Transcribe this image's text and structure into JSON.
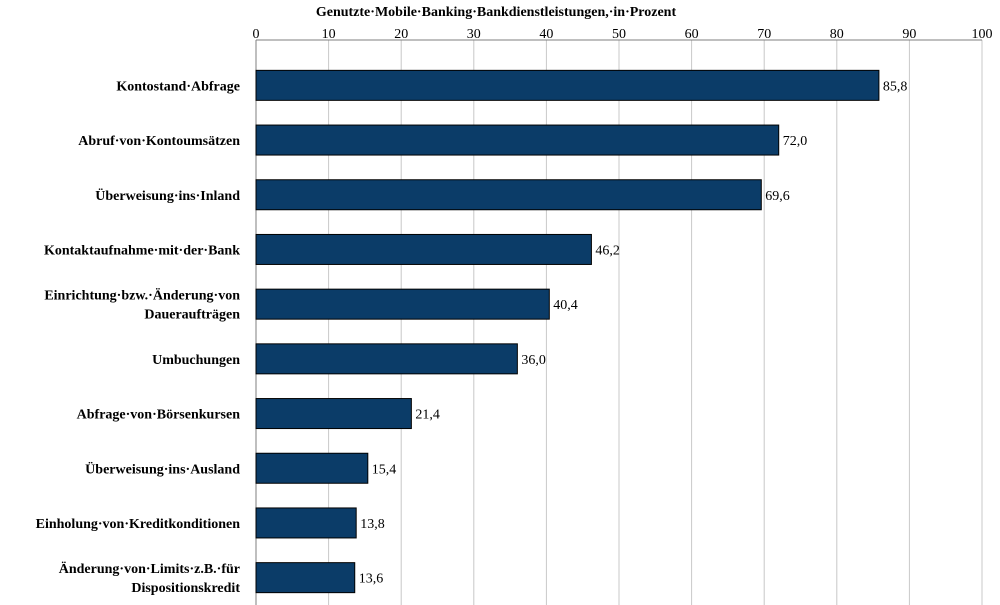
{
  "chart_data": {
    "type": "bar",
    "orientation": "horizontal",
    "title": "Genutzte·Mobile·Banking·Bankdienstleistungen,·in·Prozent",
    "title_position": "top",
    "x_axis_position": "top",
    "xlim": [
      0,
      100
    ],
    "ticks": [
      0,
      10,
      20,
      30,
      40,
      50,
      60,
      70,
      80,
      90,
      100
    ],
    "tick_labels": [
      "0",
      "10",
      "20",
      "30",
      "40",
      "50",
      "60",
      "70",
      "80",
      "90",
      "100"
    ],
    "grid": true,
    "categories": [
      [
        "Kontostand·Abfrage"
      ],
      [
        "Abruf·von·Kontoumsätzen"
      ],
      [
        "Überweisung·ins·Inland"
      ],
      [
        "Kontaktaufnahme·mit·der·Bank"
      ],
      [
        "Einrichtung·bzw.·Änderung·von",
        "Daueraufträgen"
      ],
      [
        "Umbuchungen"
      ],
      [
        "Abfrage·von·Börsenkursen"
      ],
      [
        "Überweisung·ins·Ausland"
      ],
      [
        "Einholung·von·Kreditkonditionen"
      ],
      [
        "Änderung·von·Limits·z.B.·für",
        "Dispositionskredit"
      ]
    ],
    "values": [
      85.8,
      72.0,
      69.6,
      46.2,
      40.4,
      36.0,
      21.4,
      15.4,
      13.8,
      13.6
    ],
    "value_labels": [
      "85,8",
      "72,0",
      "69,6",
      "46,2",
      "40,4",
      "36,0",
      "21,4",
      "15,4",
      "13,8",
      "13,6"
    ],
    "bar_color": "#0b3c68",
    "bar_border": "#000000"
  }
}
